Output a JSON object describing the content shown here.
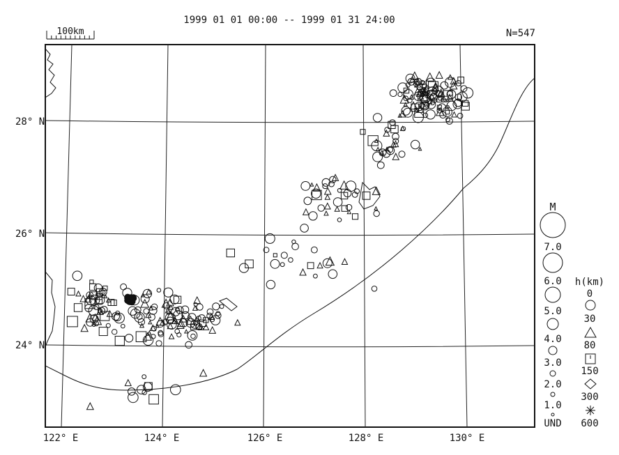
{
  "header": {
    "date_range": "1999 01 01 00:00 -- 1999 01 31 24:00",
    "count": "N=547",
    "scale_label": "100km"
  },
  "axes": {
    "lat_labels": [
      "28° N",
      "26° N",
      "24° N"
    ],
    "lon_labels": [
      "122° E",
      "124° E",
      "126° E",
      "128° E",
      "130° E"
    ]
  },
  "legend": {
    "magnitude_title": "M",
    "magnitude_labels": [
      "7.0",
      "6.0",
      "5.0",
      "4.0",
      "3.0",
      "2.0",
      "1.0",
      "UND"
    ],
    "depth_title": "h(km)",
    "depth_labels": [
      "0",
      "30",
      "80",
      "150",
      "300",
      "600"
    ]
  },
  "colors": {
    "ink": "#111111",
    "paper": "#ffffff"
  }
}
